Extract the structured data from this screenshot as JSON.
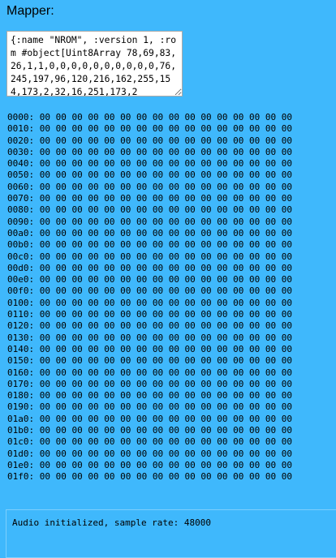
{
  "mapper": {
    "label": "Mapper:",
    "text": "{:name \"NROM\", :version 1, :rom #object[Uint8Array 78,69,83,26,1,1,0,0,0,0,0,0,0,0,0,0,76,245,197,96,120,216,162,255,154,173,2,32,16,251,173,2"
  },
  "memory": {
    "bytes_per_row": "00 00 00 00 00 00 00 00 00 00 00 00 00 00 00 00",
    "rows": [
      {
        "addr": "0000:"
      },
      {
        "addr": "0010:"
      },
      {
        "addr": "0020:"
      },
      {
        "addr": "0030:"
      },
      {
        "addr": "0040:"
      },
      {
        "addr": "0050:"
      },
      {
        "addr": "0060:"
      },
      {
        "addr": "0070:"
      },
      {
        "addr": "0080:"
      },
      {
        "addr": "0090:"
      },
      {
        "addr": "00a0:"
      },
      {
        "addr": "00b0:"
      },
      {
        "addr": "00c0:"
      },
      {
        "addr": "00d0:"
      },
      {
        "addr": "00e0:"
      },
      {
        "addr": "00f0:"
      },
      {
        "addr": "0100:"
      },
      {
        "addr": "0110:"
      },
      {
        "addr": "0120:"
      },
      {
        "addr": "0130:"
      },
      {
        "addr": "0140:"
      },
      {
        "addr": "0150:"
      },
      {
        "addr": "0160:"
      },
      {
        "addr": "0170:"
      },
      {
        "addr": "0180:"
      },
      {
        "addr": "0190:"
      },
      {
        "addr": "01a0:"
      },
      {
        "addr": "01b0:"
      },
      {
        "addr": "01c0:"
      },
      {
        "addr": "01d0:"
      },
      {
        "addr": "01e0:"
      },
      {
        "addr": "01f0:"
      }
    ]
  },
  "console": {
    "lines": [
      "Audio initialized, sample rate: 48000"
    ]
  },
  "colors": {
    "background": "#3fb8fc",
    "textarea_bg": "#ffffff",
    "text": "#000000"
  }
}
